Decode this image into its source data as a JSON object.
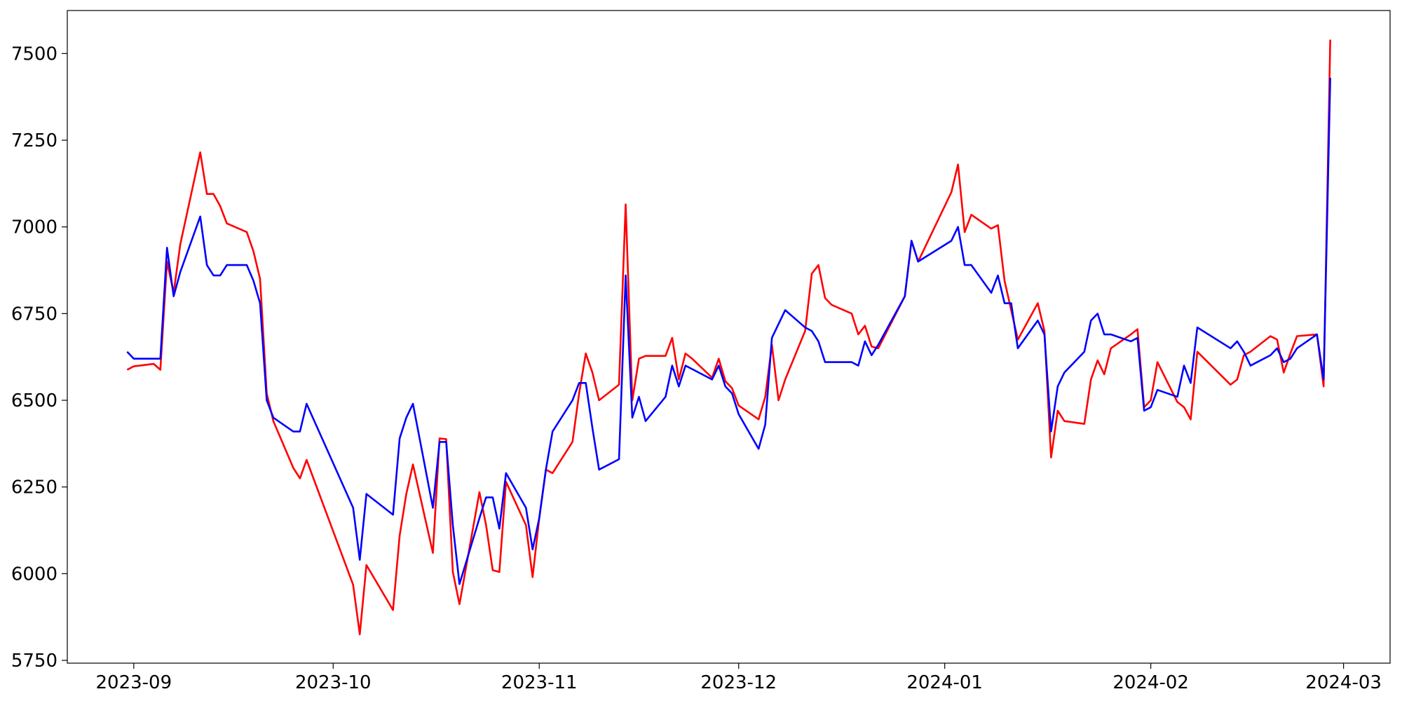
{
  "chart_data": {
    "type": "line",
    "x": [
      19600,
      19601,
      19604,
      19605,
      19606,
      19607,
      19608,
      19611,
      19612,
      19613,
      19614,
      19615,
      19618,
      19619,
      19620,
      19621,
      19622,
      19625,
      19626,
      19627,
      19634,
      19635,
      19636,
      19640,
      19641,
      19642,
      19643,
      19646,
      19647,
      19648,
      19649,
      19650,
      19653,
      19654,
      19655,
      19656,
      19657,
      19660,
      19661,
      19662,
      19663,
      19664,
      19667,
      19668,
      19669,
      19670,
      19671,
      19674,
      19675,
      19676,
      19677,
      19678,
      19681,
      19682,
      19683,
      19684,
      19685,
      19688,
      19689,
      19690,
      19691,
      19692,
      19695,
      19696,
      19697,
      19698,
      19699,
      19702,
      19703,
      19704,
      19705,
      19706,
      19709,
      19710,
      19711,
      19712,
      19713,
      19717,
      19718,
      19719,
      19724,
      19725,
      19726,
      19727,
      19730,
      19731,
      19732,
      19733,
      19734,
      19737,
      19738,
      19739,
      19740,
      19741,
      19744,
      19745,
      19746,
      19747,
      19748,
      19751,
      19752,
      19753,
      19754,
      19755,
      19758,
      19759,
      19760,
      19761,
      19766,
      19767,
      19768,
      19769,
      19772,
      19773,
      19774,
      19775,
      19776,
      19779,
      19780,
      19781
    ],
    "series": [
      {
        "color": "red",
        "values": [
          6588,
          6598,
          6605,
          6588,
          6900,
          6810,
          6950,
          7215,
          7095,
          7095,
          7060,
          7010,
          6985,
          6930,
          6850,
          6520,
          6440,
          6305,
          6275,
          6328,
          5968,
          5825,
          6025,
          5895,
          6110,
          6230,
          6315,
          6060,
          6390,
          6388,
          6005,
          5912,
          6235,
          6140,
          6010,
          6005,
          6265,
          6140,
          5990,
          6160,
          6300,
          6290,
          6380,
          6520,
          6635,
          6580,
          6500,
          6545,
          7065,
          6500,
          6620,
          6628,
          6628,
          6680,
          6560,
          6635,
          6620,
          6565,
          6620,
          6555,
          6535,
          6485,
          6445,
          6510,
          6660,
          6500,
          6560,
          6700,
          6865,
          6890,
          6795,
          6775,
          6750,
          6690,
          6715,
          6655,
          6650,
          6800,
          6960,
          6900,
          7100,
          7180,
          6985,
          7035,
          6995,
          7005,
          6845,
          6760,
          6675,
          6780,
          6700,
          6335,
          6470,
          6440,
          6432,
          6560,
          6615,
          6575,
          6650,
          6690,
          6705,
          6480,
          6500,
          6610,
          6495,
          6480,
          6445,
          6640,
          6545,
          6560,
          6630,
          6640,
          6685,
          6675,
          6580,
          6635,
          6685,
          6690,
          6540,
          7540
        ]
      },
      {
        "color": "blue",
        "values": [
          6640,
          6620,
          6620,
          6620,
          6940,
          6800,
          6870,
          7030,
          6890,
          6860,
          6860,
          6890,
          6890,
          6845,
          6780,
          6500,
          6450,
          6410,
          6410,
          6490,
          6190,
          6040,
          6230,
          6170,
          6390,
          6450,
          6490,
          6190,
          6380,
          6380,
          6140,
          5970,
          6160,
          6220,
          6220,
          6130,
          6290,
          6190,
          6070,
          6160,
          6300,
          6410,
          6500,
          6550,
          6550,
          6420,
          6300,
          6330,
          6860,
          6450,
          6510,
          6440,
          6510,
          6600,
          6540,
          6600,
          6590,
          6560,
          6600,
          6540,
          6520,
          6460,
          6360,
          6430,
          6680,
          6720,
          6760,
          6710,
          6700,
          6670,
          6610,
          6610,
          6610,
          6600,
          6670,
          6630,
          6660,
          6800,
          6960,
          6900,
          6960,
          7000,
          6890,
          6890,
          6810,
          6860,
          6780,
          6780,
          6650,
          6730,
          6690,
          6410,
          6540,
          6580,
          6640,
          6730,
          6750,
          6690,
          6690,
          6670,
          6680,
          6470,
          6480,
          6530,
          6510,
          6600,
          6550,
          6710,
          6650,
          6670,
          6640,
          6600,
          6630,
          6650,
          6610,
          6620,
          6650,
          6690,
          6560,
          7430
        ]
      }
    ],
    "xlim": [
      19591,
      19790
    ],
    "ylim": [
      5742,
      7624
    ],
    "xticks": [
      {
        "value": 19601,
        "label": "2023-09"
      },
      {
        "value": 19631,
        "label": "2023-10"
      },
      {
        "value": 19662,
        "label": "2023-11"
      },
      {
        "value": 19692,
        "label": "2023-12"
      },
      {
        "value": 19723,
        "label": "2024-01"
      },
      {
        "value": 19754,
        "label": "2024-02"
      },
      {
        "value": 19783,
        "label": "2024-03"
      }
    ],
    "yticks": [
      5750,
      6000,
      6250,
      6500,
      6750,
      7000,
      7250,
      7500
    ],
    "grid": false
  }
}
